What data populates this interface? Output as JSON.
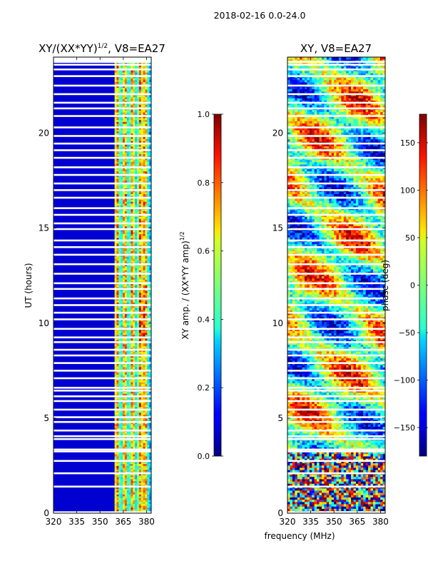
{
  "figure": {
    "suptitle": "2018-02-16 0.0-24.0",
    "shared_xlabel": "frequency (MHz)"
  },
  "chart_data": [
    {
      "type": "heatmap",
      "title": "XY/(XX*YY)",
      "title_power": "1/2",
      "title_suffix": ", V8=EA27",
      "ylabel": "UT (hours)",
      "xlabel": "",
      "xlim": [
        320,
        383
      ],
      "ylim": [
        0,
        24
      ],
      "xticks": [
        320,
        335,
        350,
        365,
        380
      ],
      "yticks": [
        0,
        5,
        10,
        15,
        20
      ],
      "colormap": "jet",
      "colorbar": {
        "label": "XY amp. / (XX*YY amp)",
        "label_power": "1/2",
        "range": [
          0.0,
          1.0
        ],
        "ticks": [
          "0.0",
          "0.2",
          "0.4",
          "0.6",
          "0.8",
          "1.0"
        ],
        "tick_values": [
          0.0,
          0.2,
          0.4,
          0.6,
          0.8,
          1.0
        ]
      },
      "high_amplitude_channels_mhz": [
        361,
        366,
        371,
        376,
        379
      ]
    },
    {
      "type": "heatmap",
      "title": "XY, V8=EA27",
      "ylabel": "",
      "xlabel": "frequency (MHz)",
      "xlim": [
        320,
        383
      ],
      "ylim": [
        0,
        24
      ],
      "xticks": [
        320,
        335,
        350,
        365,
        380
      ],
      "yticks": [
        0,
        5,
        10,
        15,
        20
      ],
      "colormap": "jet",
      "colorbar": {
        "label": "phase (deg)",
        "range": [
          -180,
          180
        ],
        "ticks": [
          "−150",
          "−100",
          "−50",
          "0",
          "50",
          "100",
          "150"
        ],
        "tick_values": [
          -150,
          -100,
          -50,
          0,
          50,
          100,
          150
        ]
      }
    }
  ],
  "flagged_gaps_ut": [
    0.05,
    1.4,
    2.1,
    2.75,
    3.25,
    3.35,
    3.9,
    4.05,
    4.35,
    4.8,
    5.05,
    5.45,
    5.9,
    6.15,
    6.45,
    6.6,
    7.1,
    7.5,
    7.9,
    8.3,
    8.6,
    9.0,
    9.25,
    9.7,
    10.2,
    10.55,
    10.95,
    11.3,
    11.8,
    12.1,
    12.6,
    13.1,
    13.6,
    14.0,
    14.35,
    14.95,
    15.25,
    15.7,
    16.05,
    16.6,
    17.0,
    17.35,
    17.8,
    18.2,
    18.7,
    19.1,
    19.45,
    19.85,
    20.3,
    20.9,
    21.3,
    21.6,
    22.05,
    22.5,
    23.0,
    23.35,
    23.6,
    23.75
  ]
}
